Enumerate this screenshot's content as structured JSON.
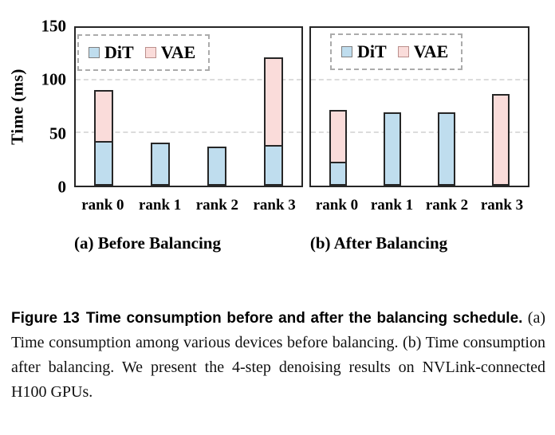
{
  "figure": {
    "y_axis_title": "Time (ms)",
    "legend": {
      "dit": "DiT",
      "vae": "VAE"
    },
    "colors": {
      "dit_fill": "#BFDDEE",
      "vae_fill": "#FADCDA",
      "bar_border": "#262626",
      "frame": "#262626",
      "gridline": "#DCDCDC"
    }
  },
  "chart_data": [
    {
      "type": "bar",
      "stacked": true,
      "title": "(a) Before Balancing",
      "categories": [
        "rank 0",
        "rank 1",
        "rank 2",
        "rank 3"
      ],
      "series": [
        {
          "name": "DiT",
          "color": "#BFDDEE",
          "values": [
            41,
            41,
            37,
            37
          ]
        },
        {
          "name": "VAE",
          "color": "#FADCDA",
          "values": [
            50,
            0,
            0,
            85
          ]
        }
      ],
      "totals": [
        91,
        41,
        37,
        122
      ],
      "xlabel": "",
      "ylabel": "Time (ms)",
      "ylim": [
        0,
        150
      ],
      "yticks": [
        0,
        50,
        100,
        150
      ],
      "gridlines": [
        50,
        100
      ],
      "grid": "dashed horizontal",
      "legend_position": "top-left"
    },
    {
      "type": "bar",
      "stacked": true,
      "title": "(b) After Balancing",
      "categories": [
        "rank 0",
        "rank 1",
        "rank 2",
        "rank 3"
      ],
      "series": [
        {
          "name": "DiT",
          "color": "#BFDDEE",
          "values": [
            21,
            70,
            70,
            0
          ]
        },
        {
          "name": "VAE",
          "color": "#FADCDA",
          "values": [
            51,
            0,
            0,
            87
          ]
        }
      ],
      "totals": [
        72,
        70,
        70,
        87
      ],
      "xlabel": "",
      "ylabel": "Time (ms)",
      "ylim": [
        0,
        150
      ],
      "yticks": [
        0,
        50,
        100,
        150
      ],
      "gridlines": [
        50,
        100
      ],
      "grid": "dashed horizontal",
      "legend_position": "top-left"
    }
  ],
  "caption": {
    "label": "Figure 13",
    "title_bold": "Time consumption before and after the balancing schedule.",
    "body": "(a) Time consumption among various devices before balancing.  (b) Time consumption after balancing. We present the 4-step denoising results on NVLink-connected H100 GPUs."
  }
}
